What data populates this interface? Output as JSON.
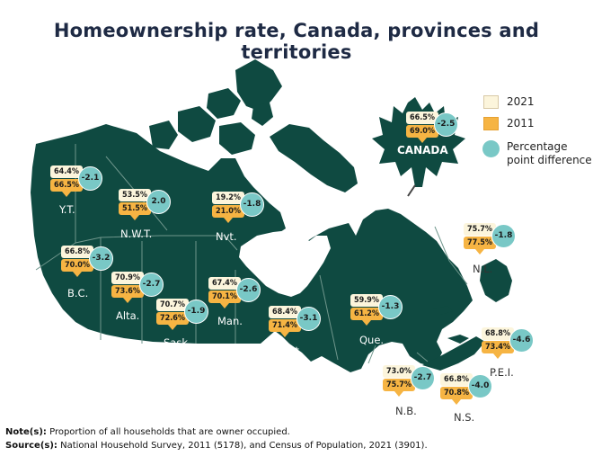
{
  "title": "Homeownership rate, Canada, provinces and territories",
  "colors": {
    "land": "#0f4a41",
    "border": "#6f968c",
    "rate_2021": "#fcf5dc",
    "rate_2011": "#f6b443",
    "difference": "#79c8c6"
  },
  "legend": {
    "items": [
      {
        "label": "2021",
        "icon": "cream-square"
      },
      {
        "label": "2011",
        "icon": "orange-square"
      },
      {
        "label_line1": "Percentage",
        "label_line2": "point difference",
        "icon": "teal-circle"
      }
    ]
  },
  "canada": {
    "label": "CANADA",
    "icon": "maple-leaf-icon",
    "rate_2021": "66.5%",
    "rate_2011": "69.0%",
    "difference": "-2.5"
  },
  "regions": [
    {
      "key": "yt",
      "label": "Y.T.",
      "rate_2021": "64.4%",
      "rate_2011": "66.5%",
      "difference": "-2.1"
    },
    {
      "key": "nwt",
      "label": "N.W.T.",
      "rate_2021": "53.5%",
      "rate_2011": "51.5%",
      "difference": "2.0"
    },
    {
      "key": "nvt",
      "label": "Nvt.",
      "rate_2021": "19.2%",
      "rate_2011": "21.0%",
      "difference": "-1.8"
    },
    {
      "key": "bc",
      "label": "B.C.",
      "rate_2021": "66.8%",
      "rate_2011": "70.0%",
      "difference": "-3.2"
    },
    {
      "key": "ab",
      "label": "Alta.",
      "rate_2021": "70.9%",
      "rate_2011": "73.6%",
      "difference": "-2.7"
    },
    {
      "key": "sk",
      "label": "Sask.",
      "rate_2021": "70.7%",
      "rate_2011": "72.6%",
      "difference": "-1.9"
    },
    {
      "key": "mb",
      "label": "Man.",
      "rate_2021": "67.4%",
      "rate_2011": "70.1%",
      "difference": "-2.6"
    },
    {
      "key": "on",
      "label": "Ont.",
      "rate_2021": "68.4%",
      "rate_2011": "71.4%",
      "difference": "-3.1"
    },
    {
      "key": "qc",
      "label": "Que.",
      "rate_2021": "59.9%",
      "rate_2011": "61.2%",
      "difference": "-1.3"
    },
    {
      "key": "nl",
      "label": "N.L.",
      "rate_2021": "75.7%",
      "rate_2011": "77.5%",
      "difference": "-1.8"
    },
    {
      "key": "pe",
      "label": "P.E.I.",
      "rate_2021": "68.8%",
      "rate_2011": "73.4%",
      "difference": "-4.6"
    },
    {
      "key": "nb",
      "label": "N.B.",
      "rate_2021": "73.0%",
      "rate_2011": "75.7%",
      "difference": "-2.7"
    },
    {
      "key": "ns",
      "label": "N.S.",
      "rate_2021": "66.8%",
      "rate_2011": "70.8%",
      "difference": "-4.0"
    }
  ],
  "notes": {
    "note_label": "Note(s):",
    "note_text": "Proportion of all households that are owner occupied.",
    "source_label": "Source(s):",
    "source_text": "National Household Survey, 2011 (5178), and Census of Population, 2021 (3901)."
  }
}
